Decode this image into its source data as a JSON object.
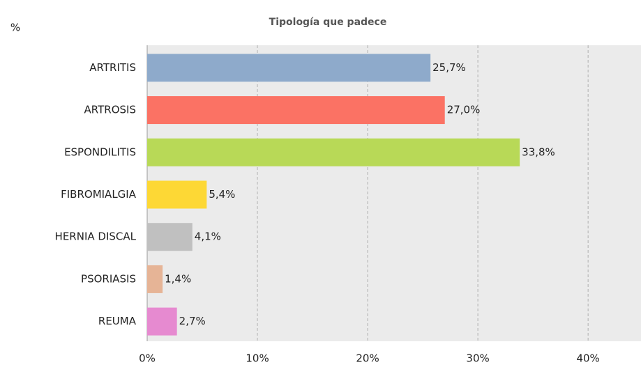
{
  "chart_data": {
    "type": "hbar",
    "title": "Tipología que padece",
    "y_label": "%",
    "categories": [
      "ARTRITIS",
      "ARTROSIS",
      "ESPONDILITIS",
      "FIBROMIALGIA",
      "HERNIA DISCAL",
      "PSORIASIS",
      "REUMA"
    ],
    "values": [
      25.7,
      27.0,
      33.8,
      5.4,
      4.1,
      1.4,
      2.7
    ],
    "value_labels": [
      "25,7%",
      "27,0%",
      "33,8%",
      "5,4%",
      "4,1%",
      "1,4%",
      "2,7%"
    ],
    "colors": [
      "#8eaacb",
      "#fb7264",
      "#b8d957",
      "#fdd835",
      "#c0c0c0",
      "#e6b496",
      "#e68ad0"
    ],
    "xlim": [
      0,
      44.8
    ],
    "xticks": [
      {
        "value": 0,
        "label": "0%"
      },
      {
        "value": 10,
        "label": "10%"
      },
      {
        "value": 20,
        "label": "20%"
      },
      {
        "value": 30,
        "label": "30%"
      },
      {
        "value": 40,
        "label": "40%"
      }
    ],
    "grid": true
  }
}
